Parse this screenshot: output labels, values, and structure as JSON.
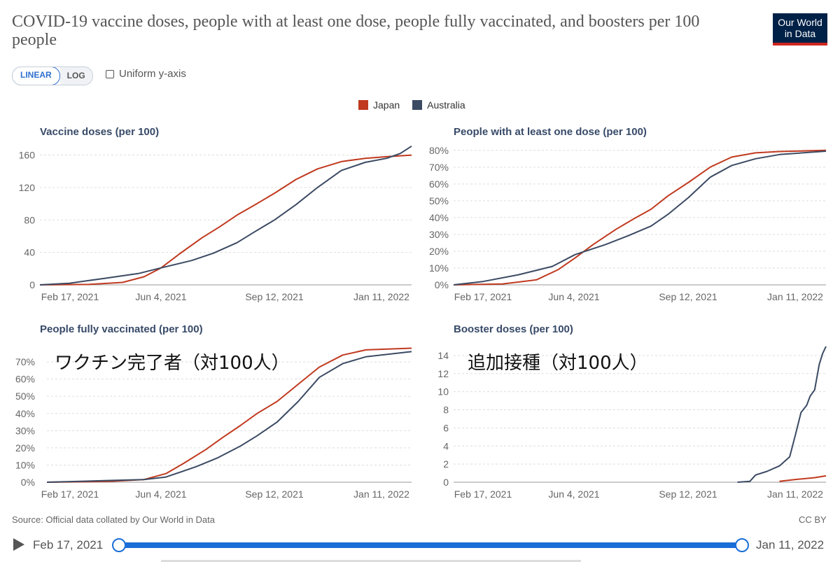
{
  "header": {
    "title": "COVID-19 vaccine doses, people with at least one dose, people fully vaccinated, and boosters per 100 people",
    "logo_line1": "Our World",
    "logo_line2": "in Data"
  },
  "controls": {
    "linear_label": "LINEAR",
    "log_label": "LOG",
    "uniform_label": "Uniform y-axis"
  },
  "legend": [
    {
      "name": "Japan",
      "color": "#c0391f"
    },
    {
      "name": "Australia",
      "color": "#3b4a63"
    }
  ],
  "footer": {
    "source": "Source: Official data collated by Our World in Data",
    "license": "CC BY"
  },
  "timeline": {
    "start_label": "Feb 17, 2021",
    "end_label": "Jan 11, 2022",
    "start_fraction": 0,
    "end_fraction": 1
  },
  "chart_data": [
    {
      "type": "line",
      "title": "Vaccine doses (per 100)",
      "x_ticks": [
        "Feb 17, 2021",
        "Jun 4, 2021",
        "Sep 12, 2021",
        "Jan 11, 2022"
      ],
      "y_ticks": [
        "0",
        "40",
        "80",
        "120",
        "160"
      ],
      "ylim": [
        0,
        170
      ],
      "xlim": [
        "2021-02-17",
        "2022-01-11"
      ],
      "series": [
        {
          "name": "Japan",
          "color": "#c0391f",
          "x": [
            "2021-02-17",
            "2021-04-01",
            "2021-05-01",
            "2021-05-20",
            "2021-06-04",
            "2021-06-20",
            "2021-07-10",
            "2021-07-25",
            "2021-08-10",
            "2021-08-25",
            "2021-09-12",
            "2021-10-01",
            "2021-10-20",
            "2021-11-10",
            "2021-12-01",
            "2021-12-20",
            "2022-01-11"
          ],
          "y": [
            0,
            0.5,
            3,
            10,
            21,
            38,
            58,
            71,
            86,
            98,
            113,
            130,
            143,
            152,
            156,
            158,
            160
          ]
        },
        {
          "name": "Australia",
          "color": "#3b4a63",
          "x": [
            "2021-02-17",
            "2021-03-15",
            "2021-04-15",
            "2021-05-15",
            "2021-06-04",
            "2021-07-01",
            "2021-07-20",
            "2021-08-10",
            "2021-08-25",
            "2021-09-12",
            "2021-10-01",
            "2021-10-20",
            "2021-11-10",
            "2021-12-01",
            "2021-12-20",
            "2022-01-01",
            "2022-01-11"
          ],
          "y": [
            0,
            2,
            8,
            14,
            21,
            30,
            39,
            52,
            65,
            80,
            99,
            120,
            141,
            151,
            156,
            162,
            171
          ]
        }
      ]
    },
    {
      "type": "line",
      "title": "People with at least one dose (per 100)",
      "x_ticks": [
        "Feb 17, 2021",
        "Jun 4, 2021",
        "Sep 12, 2021",
        "Jan 11, 2022"
      ],
      "y_ticks": [
        "0%",
        "10%",
        "20%",
        "30%",
        "40%",
        "50%",
        "60%",
        "70%",
        "80%"
      ],
      "ylim": [
        0,
        82
      ],
      "xlim": [
        "2021-02-17",
        "2022-01-11"
      ],
      "series": [
        {
          "name": "Japan",
          "color": "#c0391f",
          "x": [
            "2021-02-17",
            "2021-04-01",
            "2021-05-01",
            "2021-05-20",
            "2021-06-04",
            "2021-06-20",
            "2021-07-10",
            "2021-07-25",
            "2021-08-10",
            "2021-08-25",
            "2021-09-12",
            "2021-10-01",
            "2021-10-20",
            "2021-11-10",
            "2021-12-01",
            "2022-01-11"
          ],
          "y": [
            0,
            0.5,
            3,
            9,
            16,
            24,
            33,
            39,
            45,
            53,
            61,
            70,
            76,
            78.5,
            79.3,
            80
          ]
        },
        {
          "name": "Australia",
          "color": "#3b4a63",
          "x": [
            "2021-02-17",
            "2021-03-15",
            "2021-04-15",
            "2021-05-15",
            "2021-06-04",
            "2021-07-01",
            "2021-07-20",
            "2021-08-10",
            "2021-08-25",
            "2021-09-12",
            "2021-10-01",
            "2021-10-20",
            "2021-11-10",
            "2021-12-01",
            "2022-01-11"
          ],
          "y": [
            0,
            2,
            6,
            11,
            18,
            24,
            29,
            35,
            42,
            52,
            64,
            71,
            75,
            77.5,
            79.5
          ]
        }
      ]
    },
    {
      "type": "line",
      "title": "People fully vaccinated (per 100)",
      "overlay_label": "ワクチン完了者（対100人）",
      "x_ticks": [
        "Feb 17, 2021",
        "Jun 4, 2021",
        "Sep 12, 2021",
        "Jan 11, 2022"
      ],
      "y_ticks": [
        "0%",
        "10%",
        "20%",
        "30%",
        "40%",
        "50%",
        "60%",
        "70%"
      ],
      "ylim": [
        0,
        79
      ],
      "xlim": [
        "2021-02-17",
        "2022-01-11"
      ],
      "series": [
        {
          "name": "Japan",
          "color": "#c0391f",
          "x": [
            "2021-02-17",
            "2021-04-15",
            "2021-05-15",
            "2021-06-04",
            "2021-06-20",
            "2021-07-10",
            "2021-07-25",
            "2021-08-10",
            "2021-08-25",
            "2021-09-12",
            "2021-10-01",
            "2021-10-20",
            "2021-11-10",
            "2021-12-01",
            "2022-01-11"
          ],
          "y": [
            0,
            0.5,
            1.5,
            5,
            11,
            19,
            26,
            33,
            40,
            47,
            57,
            67,
            74,
            77,
            78
          ]
        },
        {
          "name": "Australia",
          "color": "#3b4a63",
          "x": [
            "2021-02-17",
            "2021-04-15",
            "2021-05-15",
            "2021-06-04",
            "2021-07-01",
            "2021-07-20",
            "2021-08-10",
            "2021-08-25",
            "2021-09-12",
            "2021-10-01",
            "2021-10-20",
            "2021-11-10",
            "2021-12-01",
            "2022-01-11"
          ],
          "y": [
            0,
            1,
            1.5,
            3,
            9,
            14,
            21,
            27,
            35,
            47,
            61,
            69,
            73,
            76
          ]
        }
      ]
    },
    {
      "type": "line",
      "title": "Booster doses (per 100)",
      "overlay_label": "追加接種（対100人）",
      "x_ticks": [
        "Feb 17, 2021",
        "Jun 4, 2021",
        "Sep 12, 2021",
        "Jan 11, 2022"
      ],
      "y_ticks": [
        "0",
        "2",
        "4",
        "6",
        "8",
        "10",
        "12",
        "14"
      ],
      "ylim": [
        0,
        15
      ],
      "xlim": [
        "2021-02-17",
        "2022-01-11"
      ],
      "series": [
        {
          "name": "Japan",
          "color": "#c0391f",
          "x": [
            "2021-12-01",
            "2021-12-15",
            "2022-01-01",
            "2022-01-11"
          ],
          "y": [
            0.1,
            0.3,
            0.5,
            0.7
          ]
        },
        {
          "name": "Australia",
          "color": "#3b4a63",
          "x": [
            "2021-10-25",
            "2021-11-05",
            "2021-11-10",
            "2021-11-20",
            "2021-12-01",
            "2021-12-10",
            "2021-12-15",
            "2021-12-20",
            "2021-12-25",
            "2021-12-28",
            "2022-01-01",
            "2022-01-05",
            "2022-01-08",
            "2022-01-11"
          ],
          "y": [
            0,
            0.1,
            0.8,
            1.2,
            1.8,
            2.8,
            5.2,
            7.7,
            8.5,
            9.5,
            10.2,
            13.0,
            14.2,
            15.0
          ]
        }
      ]
    }
  ]
}
